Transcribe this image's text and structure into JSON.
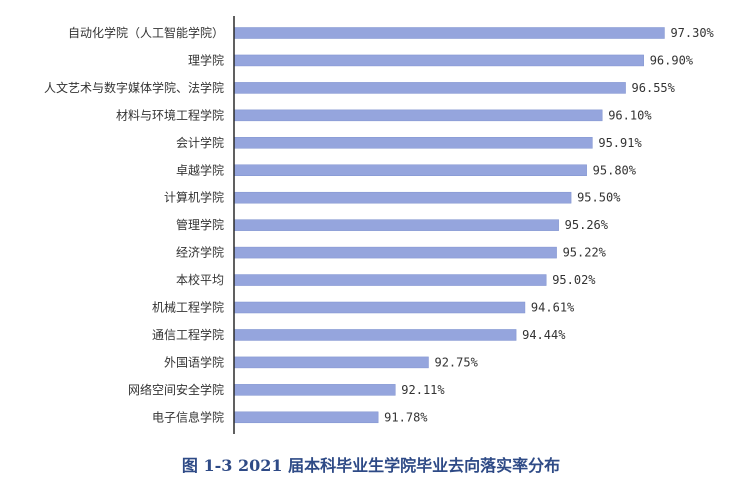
{
  "caption": "图 1-3 2021 届本科毕业生学院毕业去向落实率分布",
  "colors": {
    "bar": "#95a5dd",
    "bar_edge": "#7f92cf",
    "axis": "#2b2b2b",
    "text": "#333333",
    "caption": "#2e4a86"
  },
  "chart_data": {
    "type": "bar",
    "orientation": "horizontal",
    "categories": [
      "自动化学院（人工智能学院）",
      "理学院",
      "人文艺术与数字媒体学院、法学院",
      "材料与环境工程学院",
      "会计学院",
      "卓越学院",
      "计算机学院",
      "管理学院",
      "经济学院",
      "本校平均",
      "机械工程学院",
      "通信工程学院",
      "外国语学院",
      "网络空间安全学院",
      "电子信息学院"
    ],
    "values": [
      97.3,
      96.9,
      96.55,
      96.1,
      95.91,
      95.8,
      95.5,
      95.26,
      95.22,
      95.02,
      94.61,
      94.44,
      92.75,
      92.11,
      91.78
    ],
    "value_labels": [
      "97.30%",
      "96.90%",
      "96.55%",
      "96.10%",
      "95.91%",
      "95.80%",
      "95.50%",
      "95.26%",
      "95.22%",
      "95.02%",
      "94.61%",
      "94.44%",
      "92.75%",
      "92.11%",
      "91.78%"
    ],
    "title": "图 1-3 2021 届本科毕业生学院毕业去向落实率分布",
    "xlabel": "",
    "ylabel": "",
    "xlim": [
      89.0,
      97.6
    ],
    "grid": false,
    "legend": "none"
  }
}
